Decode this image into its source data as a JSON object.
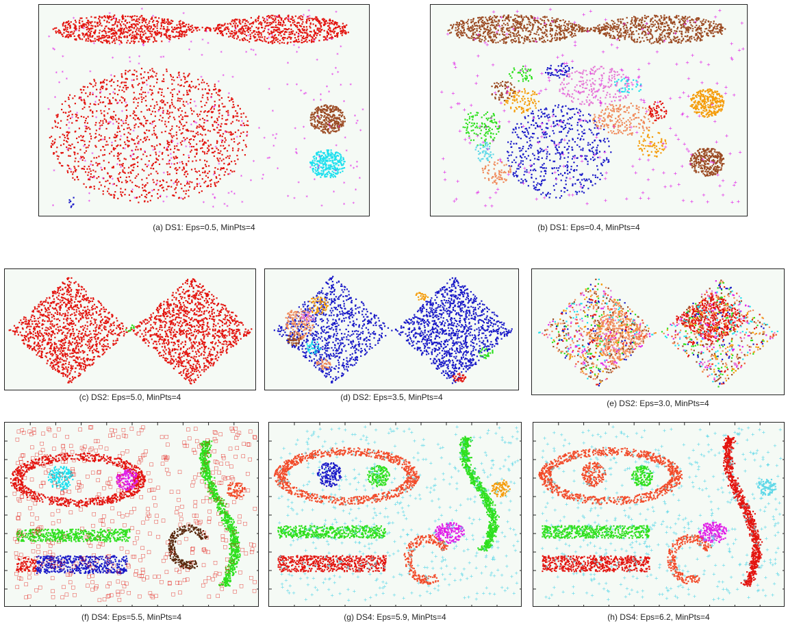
{
  "figure": {
    "panels": [
      {
        "id": "a",
        "caption": "(a) DS1: Eps=0.5, MinPts=4"
      },
      {
        "id": "b",
        "caption": "(b) DS1: Eps=0.4, MinPts=4"
      },
      {
        "id": "c",
        "caption": "(c) DS2: Eps=5.0, MinPts=4"
      },
      {
        "id": "d",
        "caption": "(d) DS2: Eps=3.5, MinPts=4"
      },
      {
        "id": "e",
        "caption": "(e) DS2: Eps=3.0, MinPts=4"
      },
      {
        "id": "f",
        "caption": "(f) DS4: Eps=5.5, MinPts=4"
      },
      {
        "id": "g",
        "caption": "(g) DS4: Eps=5.9, MinPts=4"
      },
      {
        "id": "h",
        "caption": "(h) DS4: Eps=6.2, MinPts=4"
      }
    ]
  },
  "colors": {
    "red": "#e3140f",
    "magenta": "#e01ee8",
    "brown": "#9b4a22",
    "cyan": "#1fe0ee",
    "blue": "#1a1ac8",
    "green": "#2ee01e",
    "orange": "#f59c0a",
    "salmon": "#f08a5a",
    "pink": "#e67ad6",
    "darkbrown": "#5a2a10",
    "lightcyan": "#5fd8e8",
    "tomato": "#f24b2a",
    "background": "#f5faf5"
  },
  "chart_data": [
    {
      "type": "scatter",
      "panel": "a",
      "dataset": "DS1",
      "eps": 0.5,
      "minpts": 4,
      "clusters": [
        {
          "shape": "ellipse",
          "cx": 0.25,
          "cy": 0.9,
          "rx": 0.22,
          "ry": 0.07,
          "color": "red",
          "n": 700
        },
        {
          "shape": "ellipse",
          "cx": 0.74,
          "cy": 0.9,
          "rx": 0.21,
          "ry": 0.07,
          "color": "red",
          "n": 650
        },
        {
          "shape": "band",
          "x0": 0.45,
          "x1": 0.55,
          "cy": 0.9,
          "h": 0.02,
          "color": "red",
          "n": 40
        },
        {
          "shape": "ellipse",
          "cx": 0.33,
          "cy": 0.38,
          "rx": 0.31,
          "ry": 0.33,
          "color": "red",
          "n": 1400
        },
        {
          "shape": "ellipse",
          "cx": 0.88,
          "cy": 0.46,
          "rx": 0.055,
          "ry": 0.07,
          "color": "brown",
          "n": 300
        },
        {
          "shape": "ellipse",
          "cx": 0.88,
          "cy": 0.24,
          "rx": 0.055,
          "ry": 0.07,
          "color": "cyan",
          "n": 300
        },
        {
          "shape": "noise",
          "color": "magenta",
          "n": 260
        },
        {
          "shape": "ellipse",
          "cx": 0.09,
          "cy": 0.05,
          "rx": 0.01,
          "ry": 0.03,
          "color": "blue",
          "n": 8
        }
      ]
    },
    {
      "type": "scatter",
      "panel": "b",
      "dataset": "DS1",
      "eps": 0.4,
      "minpts": 4,
      "clusters": [
        {
          "shape": "ellipse",
          "cx": 0.26,
          "cy": 0.9,
          "rx": 0.22,
          "ry": 0.07,
          "color": "brown",
          "n": 700
        },
        {
          "shape": "ellipse",
          "cx": 0.73,
          "cy": 0.9,
          "rx": 0.21,
          "ry": 0.07,
          "color": "brown",
          "n": 650
        },
        {
          "shape": "band",
          "x0": 0.46,
          "x1": 0.54,
          "cy": 0.9,
          "h": 0.02,
          "color": "brown",
          "n": 40
        },
        {
          "shape": "ellipse",
          "cx": 0.4,
          "cy": 0.3,
          "rx": 0.17,
          "ry": 0.23,
          "color": "blue",
          "n": 550
        },
        {
          "shape": "ellipse",
          "cx": 0.52,
          "cy": 0.62,
          "rx": 0.12,
          "ry": 0.1,
          "color": "pink",
          "n": 220
        },
        {
          "shape": "ellipse",
          "cx": 0.61,
          "cy": 0.46,
          "rx": 0.1,
          "ry": 0.08,
          "color": "salmon",
          "n": 200
        },
        {
          "shape": "ellipse",
          "cx": 0.15,
          "cy": 0.42,
          "rx": 0.06,
          "ry": 0.09,
          "color": "green",
          "n": 120
        },
        {
          "shape": "ellipse",
          "cx": 0.28,
          "cy": 0.55,
          "rx": 0.06,
          "ry": 0.06,
          "color": "orange",
          "n": 90
        },
        {
          "shape": "ellipse",
          "cx": 0.22,
          "cy": 0.6,
          "rx": 0.04,
          "ry": 0.05,
          "color": "brown",
          "n": 60
        },
        {
          "shape": "ellipse",
          "cx": 0.7,
          "cy": 0.34,
          "rx": 0.05,
          "ry": 0.07,
          "color": "orange",
          "n": 70
        },
        {
          "shape": "ellipse",
          "cx": 0.72,
          "cy": 0.5,
          "rx": 0.03,
          "ry": 0.05,
          "color": "red",
          "n": 60
        },
        {
          "shape": "ellipse",
          "cx": 0.2,
          "cy": 0.2,
          "rx": 0.05,
          "ry": 0.06,
          "color": "salmon",
          "n": 70
        },
        {
          "shape": "ellipse",
          "cx": 0.16,
          "cy": 0.3,
          "rx": 0.03,
          "ry": 0.05,
          "color": "lightcyan",
          "n": 50
        },
        {
          "shape": "ellipse",
          "cx": 0.28,
          "cy": 0.68,
          "rx": 0.04,
          "ry": 0.04,
          "color": "green",
          "n": 40
        },
        {
          "shape": "ellipse",
          "cx": 0.4,
          "cy": 0.7,
          "rx": 0.05,
          "ry": 0.04,
          "color": "blue",
          "n": 50
        },
        {
          "shape": "ellipse",
          "cx": 0.62,
          "cy": 0.62,
          "rx": 0.05,
          "ry": 0.04,
          "color": "cyan",
          "n": 35
        },
        {
          "shape": "ellipse",
          "cx": 0.88,
          "cy": 0.54,
          "rx": 0.055,
          "ry": 0.07,
          "color": "orange",
          "n": 300
        },
        {
          "shape": "ellipse",
          "cx": 0.88,
          "cy": 0.25,
          "rx": 0.055,
          "ry": 0.07,
          "color": "brown",
          "n": 300
        },
        {
          "shape": "noise",
          "color": "magenta",
          "n": 260
        }
      ]
    },
    {
      "type": "scatter",
      "panel": "c",
      "dataset": "DS2",
      "eps": 5.0,
      "minpts": 4,
      "clusters": [
        {
          "shape": "diamond",
          "cx": 0.25,
          "cy": 0.5,
          "w": 0.25,
          "h": 0.48,
          "color": "red",
          "n": 1200
        },
        {
          "shape": "diamond",
          "cx": 0.75,
          "cy": 0.5,
          "w": 0.25,
          "h": 0.48,
          "color": "red",
          "n": 1200
        },
        {
          "shape": "ellipse",
          "cx": 0.5,
          "cy": 0.5,
          "rx": 0.02,
          "ry": 0.05,
          "color": "green",
          "n": 10
        }
      ]
    },
    {
      "type": "scatter",
      "panel": "d",
      "dataset": "DS2",
      "eps": 3.5,
      "minpts": 4,
      "clusters": [
        {
          "shape": "diamond",
          "cx": 0.26,
          "cy": 0.5,
          "w": 0.24,
          "h": 0.48,
          "color": "blue",
          "n": 900
        },
        {
          "shape": "diamond",
          "cx": 0.75,
          "cy": 0.5,
          "w": 0.24,
          "h": 0.48,
          "color": "blue",
          "n": 1200
        },
        {
          "shape": "ellipse",
          "cx": 0.12,
          "cy": 0.55,
          "rx": 0.06,
          "ry": 0.14,
          "color": "salmon",
          "n": 140
        },
        {
          "shape": "ellipse",
          "cx": 0.2,
          "cy": 0.72,
          "rx": 0.04,
          "ry": 0.08,
          "color": "orange",
          "n": 60
        },
        {
          "shape": "ellipse",
          "cx": 0.1,
          "cy": 0.42,
          "rx": 0.03,
          "ry": 0.06,
          "color": "brown",
          "n": 40
        },
        {
          "shape": "ellipse",
          "cx": 0.18,
          "cy": 0.35,
          "rx": 0.03,
          "ry": 0.06,
          "color": "cyan",
          "n": 35
        },
        {
          "shape": "ellipse",
          "cx": 0.16,
          "cy": 0.62,
          "rx": 0.03,
          "ry": 0.05,
          "color": "pink",
          "n": 30
        },
        {
          "shape": "ellipse",
          "cx": 0.22,
          "cy": 0.2,
          "rx": 0.03,
          "ry": 0.05,
          "color": "salmon",
          "n": 35
        },
        {
          "shape": "ellipse",
          "cx": 0.88,
          "cy": 0.3,
          "rx": 0.03,
          "ry": 0.05,
          "color": "green",
          "n": 25
        },
        {
          "shape": "ellipse",
          "cx": 0.77,
          "cy": 0.08,
          "rx": 0.03,
          "ry": 0.04,
          "color": "red",
          "n": 30
        },
        {
          "shape": "ellipse",
          "cx": 0.62,
          "cy": 0.8,
          "rx": 0.025,
          "ry": 0.04,
          "color": "orange",
          "n": 25
        }
      ]
    },
    {
      "type": "scatter",
      "panel": "e",
      "dataset": "DS2",
      "eps": 3.0,
      "minpts": 4,
      "clusters": [
        {
          "shape": "diamond",
          "cx": 0.33,
          "cy": 0.48,
          "w": 0.13,
          "h": 0.28,
          "color": "salmon",
          "n": 500
        },
        {
          "shape": "diamond",
          "cx": 0.72,
          "cy": 0.62,
          "w": 0.16,
          "h": 0.22,
          "color": "red",
          "n": 500
        },
        {
          "shape": "mixdiamond",
          "cx": 0.25,
          "cy": 0.5,
          "w": 0.24,
          "h": 0.47,
          "n": 700
        },
        {
          "shape": "mixdiamond",
          "cx": 0.75,
          "cy": 0.5,
          "w": 0.24,
          "h": 0.47,
          "n": 700
        }
      ]
    },
    {
      "type": "scatter",
      "panel": "f",
      "dataset": "DS4",
      "eps": 5.5,
      "minpts": 4,
      "clusters": [
        {
          "shape": "ring",
          "cx": 0.28,
          "cy": 0.7,
          "rx": 0.25,
          "ry": 0.13,
          "t": 0.05,
          "color": "red",
          "n": 900
        },
        {
          "shape": "ellipse",
          "cx": 0.21,
          "cy": 0.71,
          "rx": 0.05,
          "ry": 0.07,
          "color": "cyan",
          "n": 160
        },
        {
          "shape": "ellipse",
          "cx": 0.48,
          "cy": 0.7,
          "rx": 0.045,
          "ry": 0.06,
          "color": "magenta",
          "n": 140
        },
        {
          "shape": "rect",
          "x0": 0.03,
          "x1": 0.49,
          "y0": 0.35,
          "y1": 0.42,
          "color": "green",
          "n": 500
        },
        {
          "shape": "rect",
          "x0": 0.03,
          "x1": 0.11,
          "y0": 0.18,
          "y1": 0.26,
          "color": "red",
          "n": 80
        },
        {
          "shape": "rect",
          "x0": 0.11,
          "x1": 0.48,
          "y0": 0.17,
          "y1": 0.27,
          "color": "blue",
          "n": 500
        },
        {
          "shape": "s-curve",
          "x0": 0.73,
          "x1": 0.98,
          "y0": 0.1,
          "y1": 0.92,
          "color": "green",
          "n": 900
        },
        {
          "shape": "hook",
          "cx": 0.73,
          "cy": 0.32,
          "r": 0.08,
          "color": "darkbrown",
          "n": 260
        },
        {
          "shape": "ellipse",
          "cx": 0.92,
          "cy": 0.64,
          "rx": 0.04,
          "ry": 0.05,
          "color": "tomato",
          "n": 80
        },
        {
          "shape": "noise",
          "color": "red",
          "n": 520
        }
      ]
    },
    {
      "type": "scatter",
      "panel": "g",
      "dataset": "DS4",
      "eps": 5.9,
      "minpts": 4,
      "clusters": [
        {
          "shape": "ring",
          "cx": 0.3,
          "cy": 0.72,
          "rx": 0.27,
          "ry": 0.14,
          "t": 0.05,
          "color": "tomato",
          "n": 900
        },
        {
          "shape": "ellipse",
          "cx": 0.23,
          "cy": 0.73,
          "rx": 0.05,
          "ry": 0.07,
          "color": "blue",
          "n": 160
        },
        {
          "shape": "ellipse",
          "cx": 0.43,
          "cy": 0.72,
          "rx": 0.045,
          "ry": 0.06,
          "color": "green",
          "n": 150
        },
        {
          "shape": "rect",
          "x0": 0.02,
          "x1": 0.46,
          "y0": 0.37,
          "y1": 0.44,
          "color": "green",
          "n": 500
        },
        {
          "shape": "rect",
          "x0": 0.02,
          "x1": 0.46,
          "y0": 0.18,
          "y1": 0.27,
          "color": "red",
          "n": 550
        },
        {
          "shape": "s-curve",
          "x0": 0.72,
          "x1": 0.96,
          "y0": 0.3,
          "y1": 0.94,
          "color": "green",
          "n": 750
        },
        {
          "shape": "hook",
          "cx": 0.63,
          "cy": 0.25,
          "r": 0.09,
          "color": "tomato",
          "n": 260
        },
        {
          "shape": "ellipse",
          "cx": 0.72,
          "cy": 0.4,
          "rx": 0.06,
          "ry": 0.06,
          "color": "magenta",
          "n": 180
        },
        {
          "shape": "ellipse",
          "cx": 0.93,
          "cy": 0.65,
          "rx": 0.04,
          "ry": 0.05,
          "color": "orange",
          "n": 90
        },
        {
          "shape": "noise",
          "color": "lightcyan",
          "n": 560
        }
      ]
    },
    {
      "type": "scatter",
      "panel": "h",
      "dataset": "DS4",
      "eps": 6.2,
      "minpts": 4,
      "clusters": [
        {
          "shape": "ring",
          "cx": 0.3,
          "cy": 0.72,
          "rx": 0.27,
          "ry": 0.14,
          "t": 0.05,
          "color": "tomato",
          "n": 900
        },
        {
          "shape": "ellipse",
          "cx": 0.23,
          "cy": 0.73,
          "rx": 0.05,
          "ry": 0.07,
          "color": "tomato",
          "n": 160
        },
        {
          "shape": "ellipse",
          "cx": 0.43,
          "cy": 0.72,
          "rx": 0.045,
          "ry": 0.06,
          "color": "green",
          "n": 150
        },
        {
          "shape": "rect",
          "x0": 0.02,
          "x1": 0.46,
          "y0": 0.37,
          "y1": 0.44,
          "color": "green",
          "n": 500
        },
        {
          "shape": "rect",
          "x0": 0.02,
          "x1": 0.46,
          "y0": 0.18,
          "y1": 0.27,
          "color": "red",
          "n": 550
        },
        {
          "shape": "s-curve",
          "x0": 0.72,
          "x1": 0.96,
          "y0": 0.1,
          "y1": 0.94,
          "color": "red",
          "n": 900
        },
        {
          "shape": "hook",
          "cx": 0.63,
          "cy": 0.25,
          "r": 0.09,
          "color": "tomato",
          "n": 260
        },
        {
          "shape": "ellipse",
          "cx": 0.72,
          "cy": 0.4,
          "rx": 0.06,
          "ry": 0.06,
          "color": "magenta",
          "n": 180
        },
        {
          "shape": "ellipse",
          "cx": 0.94,
          "cy": 0.66,
          "rx": 0.04,
          "ry": 0.05,
          "color": "lightcyan",
          "n": 90
        },
        {
          "shape": "noise",
          "color": "lightcyan",
          "n": 560
        }
      ]
    }
  ]
}
